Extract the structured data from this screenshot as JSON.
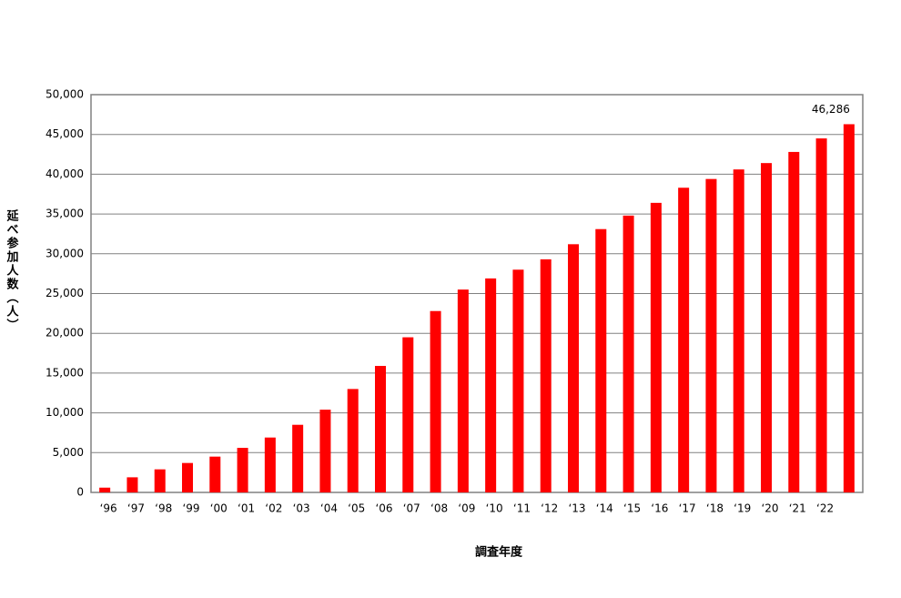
{
  "chart_data": {
    "type": "bar",
    "x_label": "調査年度",
    "y_label": "延べ参加人数（人）",
    "categories": [
      "‘96",
      "‘97",
      "‘98",
      "‘99",
      "‘00",
      "‘01",
      "‘02",
      "‘03",
      "‘04",
      "‘05",
      "‘06",
      "‘07",
      "‘08",
      "‘09",
      "‘10",
      "‘11",
      "‘12",
      "‘13",
      "‘14",
      "‘15",
      "‘16",
      "‘17",
      "‘18",
      "‘19",
      "‘20",
      "‘21",
      "‘22",
      null
    ],
    "values": [
      600,
      1900,
      2900,
      3700,
      4500,
      5600,
      6900,
      8500,
      10400,
      13000,
      15900,
      19500,
      22800,
      25500,
      26900,
      28000,
      29300,
      31200,
      33100,
      34800,
      36400,
      38300,
      39400,
      40600,
      41400,
      42800,
      44500,
      46286
    ],
    "value_labels": [
      null,
      null,
      null,
      null,
      null,
      null,
      null,
      null,
      null,
      null,
      null,
      null,
      null,
      null,
      null,
      null,
      null,
      null,
      null,
      null,
      null,
      null,
      null,
      null,
      null,
      null,
      null,
      "46,286"
    ],
    "color": "#ff0000",
    "ylim": [
      0,
      50000
    ],
    "yticks": [
      0,
      {
        "value": 5000,
        "label": "5,000"
      },
      {
        "value": 10000,
        "label": "10,000"
      },
      {
        "value": 15000,
        "label": "15,000"
      },
      {
        "value": 20000,
        "label": "20,000"
      },
      {
        "value": 25000,
        "label": "25,000"
      },
      {
        "value": 30000,
        "label": "30,000"
      },
      {
        "value": 35000,
        "label": "35,000"
      },
      {
        "value": 40000,
        "label": "40,000"
      },
      {
        "value": 45000,
        "label": "45,000"
      },
      {
        "value": 50000,
        "label": "50,000"
      }
    ],
    "grid": true
  }
}
